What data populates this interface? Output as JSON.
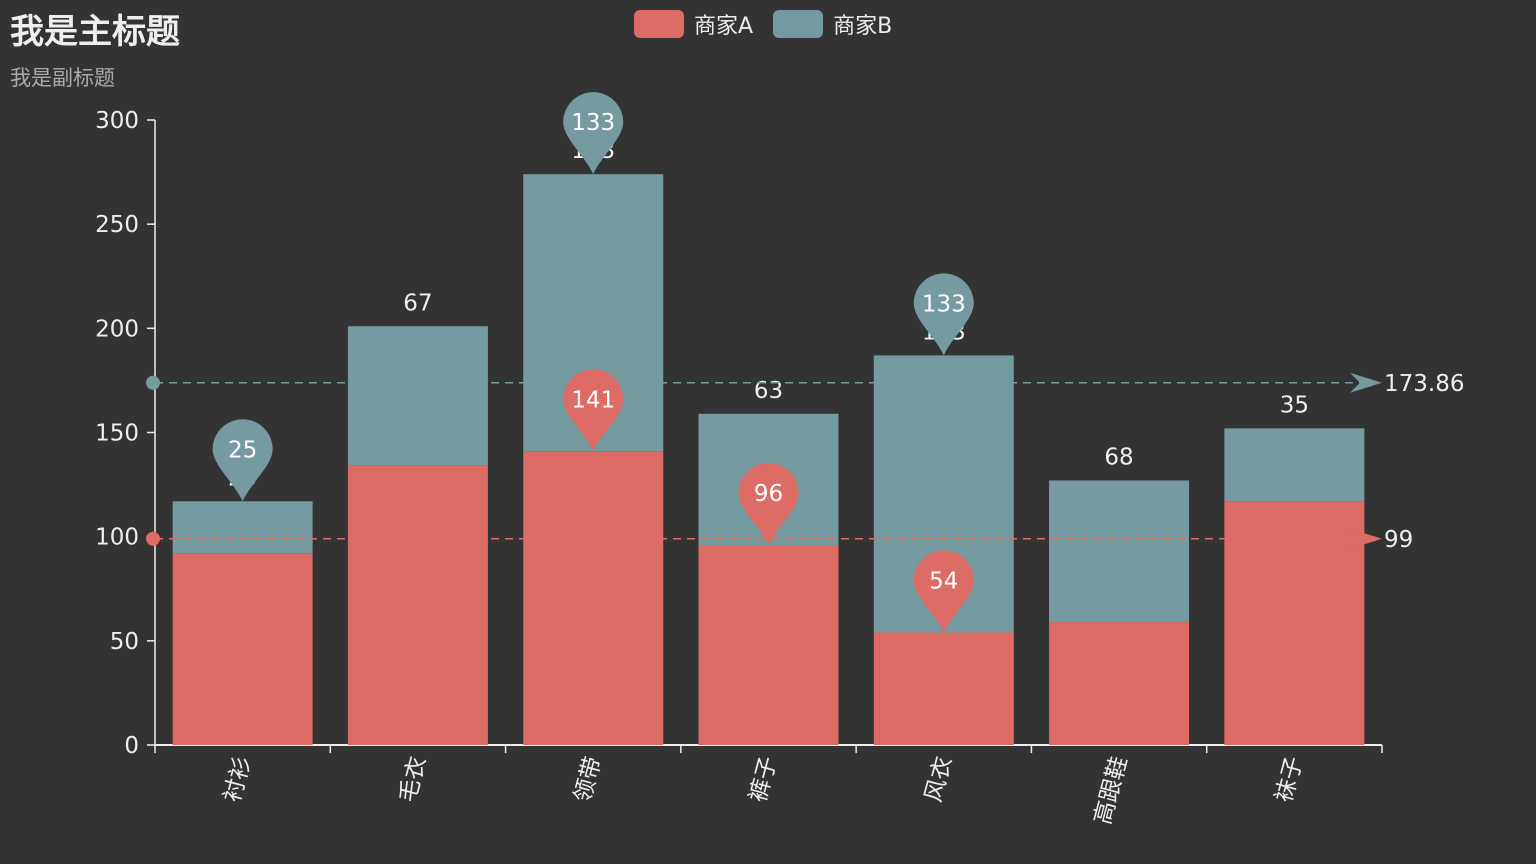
{
  "chart_data": {
    "type": "bar",
    "stacked": true,
    "title": "我是主标题",
    "subtitle": "我是副标题",
    "categories": [
      "衬衫",
      "毛衣",
      "领带",
      "裤子",
      "风衣",
      "高跟鞋",
      "袜子"
    ],
    "ylim": [
      0,
      300
    ],
    "yticks": [
      0,
      50,
      100,
      150,
      200,
      250,
      300
    ],
    "series": [
      {
        "name": "商家A",
        "color": "#dd6b66",
        "values": [
          92,
          134,
          141,
          96,
          54,
          59,
          117
        ],
        "mark_points": [
          {
            "category": "领带",
            "value": 141,
            "label": "141"
          },
          {
            "category": "裤子",
            "value": 96,
            "label": "96"
          },
          {
            "category": "风衣",
            "value": 54,
            "label": "54"
          }
        ],
        "mark_line": {
          "value": 99,
          "label": "99"
        }
      },
      {
        "name": "商家B",
        "color": "#759aa0",
        "values": [
          25,
          67,
          133,
          63,
          133,
          68,
          35
        ],
        "data_labels": [
          "25",
          "67",
          "133",
          "63",
          "133",
          "68",
          "35"
        ],
        "mark_points": [
          {
            "category": "衬衫",
            "value": 25,
            "label": "25"
          },
          {
            "category": "领带",
            "value": 133,
            "label": "133"
          },
          {
            "category": "风衣",
            "value": 133,
            "label": "133"
          }
        ],
        "mark_line": {
          "value": 173.86,
          "label": "173.86"
        }
      }
    ],
    "legend_position": "top-center",
    "x_label_rotation": -75
  }
}
